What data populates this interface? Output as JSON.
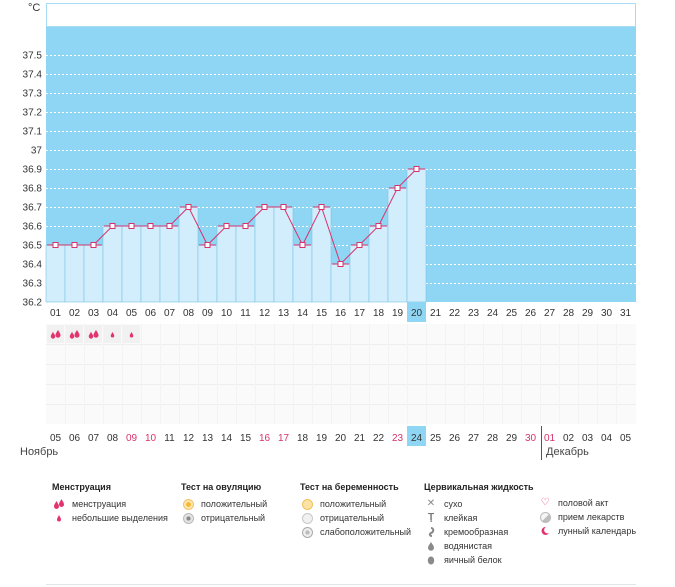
{
  "chart_data": {
    "type": "bar",
    "unit_label": "°C",
    "y_ticks": [
      "37.5",
      "37.4",
      "37.3",
      "37.2",
      "37.1",
      "37",
      "36.9",
      "36.8",
      "36.7",
      "36.6",
      "36.5",
      "36.4",
      "36.3",
      "36.2"
    ],
    "ylim": [
      36.2,
      37.5
    ],
    "cycle_days": [
      "01",
      "02",
      "03",
      "04",
      "05",
      "06",
      "07",
      "08",
      "09",
      "10",
      "11",
      "12",
      "13",
      "14",
      "15",
      "16",
      "17",
      "18",
      "19",
      "20",
      "21",
      "22",
      "23",
      "24",
      "25",
      "26",
      "27",
      "28",
      "29",
      "30",
      "31"
    ],
    "current_day_index": 19,
    "temperatures": [
      36.5,
      36.5,
      36.5,
      36.6,
      36.6,
      36.6,
      36.6,
      36.7,
      36.5,
      36.6,
      36.6,
      36.7,
      36.7,
      36.5,
      36.7,
      36.4,
      36.5,
      36.6,
      36.8,
      36.9
    ],
    "dates": [
      "05",
      "06",
      "07",
      "08",
      "09",
      "10",
      "11",
      "12",
      "13",
      "14",
      "15",
      "16",
      "17",
      "18",
      "19",
      "20",
      "21",
      "22",
      "23",
      "24",
      "25",
      "26",
      "27",
      "28",
      "29",
      "30",
      "01",
      "02",
      "03",
      "04",
      "05"
    ],
    "red_date_indexes": [
      4,
      5,
      11,
      12,
      18,
      25,
      26
    ],
    "menstruation": [
      "heavy",
      "heavy",
      "heavy",
      "light",
      "light"
    ],
    "month_left": "Ноябрь",
    "month_right": "Декабрь",
    "colors": {
      "band": "#8fd6f4",
      "bar": "#d2eefc",
      "line": "#d6336c",
      "highlight": "#8fd6f4"
    }
  },
  "legend": {
    "menstruation": {
      "title": "Менструация",
      "items": [
        "менструация",
        "небольшие выделения"
      ]
    },
    "ovulation": {
      "title": "Тест на овуляцию",
      "items": [
        "положительный",
        "отрицательный"
      ]
    },
    "pregnancy": {
      "title": "Тест на беременность",
      "items": [
        "положительный",
        "отрицательный",
        "слабоположительный"
      ]
    },
    "cervical": {
      "title": "Цервикальная жидкость",
      "items": [
        "сухо",
        "клейкая",
        "кремообразная",
        "водянистая",
        "яичный белок"
      ]
    },
    "other": {
      "items": [
        "половой акт",
        "прием лекарств",
        "лунный календарь"
      ]
    }
  }
}
